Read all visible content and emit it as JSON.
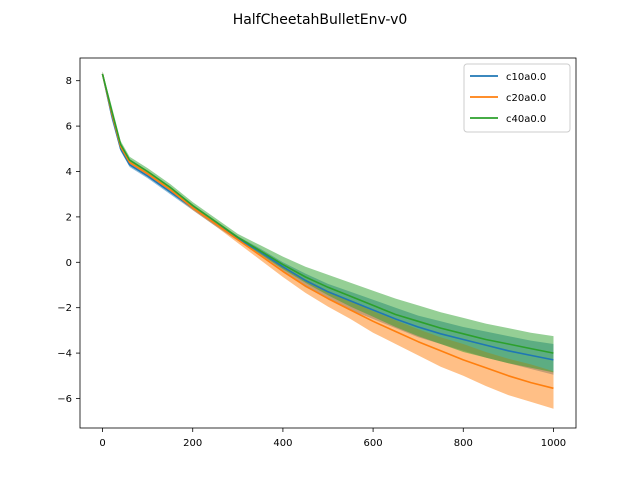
{
  "chart_data": {
    "type": "line",
    "title": "HalfCheetahBulletEnv-v0",
    "xlabel": "",
    "ylabel": "",
    "xlim": [
      -50,
      1050
    ],
    "ylim": [
      -7.3,
      9.0
    ],
    "xticks": [
      0,
      200,
      400,
      600,
      800,
      1000
    ],
    "yticks": [
      -6,
      -4,
      -2,
      0,
      2,
      4,
      6,
      8
    ],
    "grid": false,
    "legend_position": "top-right",
    "shaded_band": "spread across runs (lower/upper)",
    "series": [
      {
        "name": "c10a0.0",
        "color": "#1f77b4",
        "x": [
          0,
          20,
          40,
          60,
          100,
          150,
          200,
          250,
          300,
          350,
          400,
          450,
          500,
          550,
          600,
          650,
          700,
          750,
          800,
          850,
          900,
          950,
          1000
        ],
        "y": [
          8.3,
          6.5,
          5.0,
          4.3,
          3.8,
          3.1,
          2.4,
          1.7,
          1.05,
          0.45,
          -0.2,
          -0.8,
          -1.3,
          -1.7,
          -2.1,
          -2.5,
          -2.85,
          -3.15,
          -3.4,
          -3.65,
          -3.9,
          -4.1,
          -4.3
        ],
        "lower": [
          8.2,
          6.3,
          4.9,
          4.2,
          3.7,
          3.0,
          2.3,
          1.6,
          0.95,
          0.3,
          -0.4,
          -1.1,
          -1.6,
          -2.1,
          -2.5,
          -2.9,
          -3.3,
          -3.6,
          -3.9,
          -4.2,
          -4.45,
          -4.7,
          -4.95
        ],
        "upper": [
          8.4,
          6.7,
          5.15,
          4.4,
          3.9,
          3.2,
          2.5,
          1.8,
          1.15,
          0.6,
          0.0,
          -0.5,
          -0.95,
          -1.3,
          -1.65,
          -2.0,
          -2.35,
          -2.6,
          -2.85,
          -3.05,
          -3.25,
          -3.45,
          -3.6
        ]
      },
      {
        "name": "c20a0.0",
        "color": "#ff7f0e",
        "x": [
          0,
          20,
          40,
          60,
          100,
          150,
          200,
          250,
          300,
          350,
          400,
          450,
          500,
          550,
          600,
          650,
          700,
          750,
          800,
          850,
          900,
          950,
          1000
        ],
        "y": [
          8.3,
          6.6,
          5.1,
          4.4,
          3.9,
          3.2,
          2.4,
          1.7,
          1.0,
          0.3,
          -0.4,
          -1.05,
          -1.6,
          -2.1,
          -2.6,
          -3.05,
          -3.5,
          -3.9,
          -4.3,
          -4.65,
          -5.0,
          -5.3,
          -5.55
        ],
        "lower": [
          8.2,
          6.4,
          5.0,
          4.3,
          3.8,
          3.1,
          2.3,
          1.6,
          0.85,
          0.1,
          -0.65,
          -1.35,
          -1.95,
          -2.5,
          -3.1,
          -3.6,
          -4.1,
          -4.6,
          -5.0,
          -5.45,
          -5.85,
          -6.15,
          -6.45
        ],
        "upper": [
          8.4,
          6.8,
          5.2,
          4.5,
          4.0,
          3.3,
          2.5,
          1.8,
          1.15,
          0.5,
          -0.15,
          -0.75,
          -1.25,
          -1.7,
          -2.15,
          -2.55,
          -2.95,
          -3.3,
          -3.6,
          -3.95,
          -4.25,
          -4.5,
          -4.8
        ]
      },
      {
        "name": "c40a0.0",
        "color": "#2ca02c",
        "x": [
          0,
          20,
          40,
          60,
          100,
          150,
          200,
          250,
          300,
          350,
          400,
          450,
          500,
          550,
          600,
          650,
          700,
          750,
          800,
          850,
          900,
          950,
          1000
        ],
        "y": [
          8.3,
          6.7,
          5.2,
          4.5,
          4.0,
          3.3,
          2.5,
          1.8,
          1.1,
          0.5,
          -0.1,
          -0.65,
          -1.1,
          -1.5,
          -1.9,
          -2.3,
          -2.6,
          -2.9,
          -3.15,
          -3.4,
          -3.6,
          -3.8,
          -4.0
        ],
        "lower": [
          8.2,
          6.5,
          5.1,
          4.4,
          3.9,
          3.2,
          2.4,
          1.7,
          1.0,
          0.35,
          -0.3,
          -0.9,
          -1.45,
          -1.95,
          -2.4,
          -2.85,
          -3.25,
          -3.6,
          -3.95,
          -4.2,
          -4.45,
          -4.65,
          -4.85
        ],
        "upper": [
          8.4,
          6.9,
          5.35,
          4.65,
          4.15,
          3.45,
          2.65,
          1.95,
          1.25,
          0.75,
          0.25,
          -0.2,
          -0.55,
          -0.9,
          -1.25,
          -1.6,
          -1.9,
          -2.2,
          -2.45,
          -2.7,
          -2.9,
          -3.1,
          -3.25
        ]
      }
    ]
  }
}
